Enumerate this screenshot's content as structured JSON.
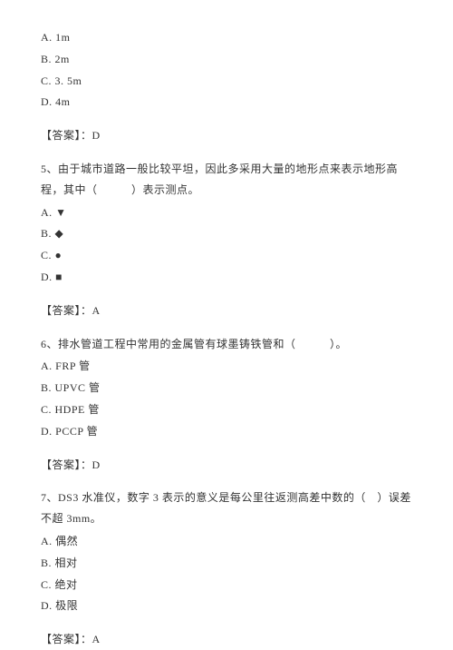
{
  "q4": {
    "options": {
      "a": "A. 1m",
      "b": "B. 2m",
      "c": "C. 3. 5m",
      "d": "D. 4m"
    },
    "answer": "【答案】：D"
  },
  "q5": {
    "text": "5、由于城市道路一般比较平坦，因此多采用大量的地形点来表示地形高程，其中（　　　）表示测点。",
    "options": {
      "a_prefix": "A. ",
      "a_shape": "▼",
      "b_prefix": "B. ",
      "b_shape": "◆",
      "c_prefix": "C. ",
      "c_shape": "●",
      "d_prefix": "D. ",
      "d_shape": "■"
    },
    "answer": "【答案】：A"
  },
  "q6": {
    "text": "6、排水管道工程中常用的金属管有球墨铸铁管和（　　　）。",
    "options": {
      "a": "A. FRP 管",
      "b": "B. UPVC 管",
      "c": "C. HDPE 管",
      "d": "D. PCCP 管"
    },
    "answer": "【答案】：D"
  },
  "q7": {
    "text": "7、DS3 水准仪，数字 3 表示的意义是每公里往返测高差中数的（　）误差不超 3mm。",
    "options": {
      "a": "A. 偶然",
      "b": "B. 相对",
      "c": "C. 绝对",
      "d": "D. 极限"
    },
    "answer": "【答案】：A"
  }
}
